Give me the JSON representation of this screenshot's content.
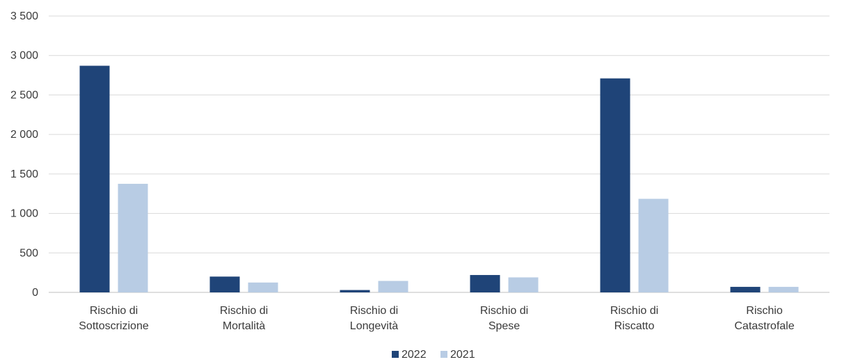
{
  "chart_data": {
    "type": "bar",
    "title": "",
    "xlabel": "",
    "ylabel": "",
    "ylim": [
      0,
      3500
    ],
    "yticks": [
      0,
      500,
      1000,
      1500,
      2000,
      2500,
      3000,
      3500
    ],
    "ytick_labels": [
      "0",
      "500",
      "1 000",
      "1 500",
      "2 000",
      "2 500",
      "3 000",
      "3 500"
    ],
    "grid": true,
    "legend_position": "bottom-center",
    "categories": [
      [
        "Rischio di",
        "Sottoscrizione"
      ],
      [
        "Rischio di",
        "Mortalità"
      ],
      [
        "Rischio di",
        "Longevità"
      ],
      [
        "Rischio di",
        "Spese"
      ],
      [
        "Rischio di",
        "Riscatto"
      ],
      [
        "Rischio",
        "Catastrofale"
      ]
    ],
    "series": [
      {
        "name": "2022",
        "color": "#1f4478",
        "values": [
          2870,
          200,
          30,
          220,
          2710,
          70
        ]
      },
      {
        "name": "2021",
        "color": "#b8cce4",
        "values": [
          1375,
          125,
          145,
          190,
          1185,
          70
        ]
      }
    ]
  }
}
